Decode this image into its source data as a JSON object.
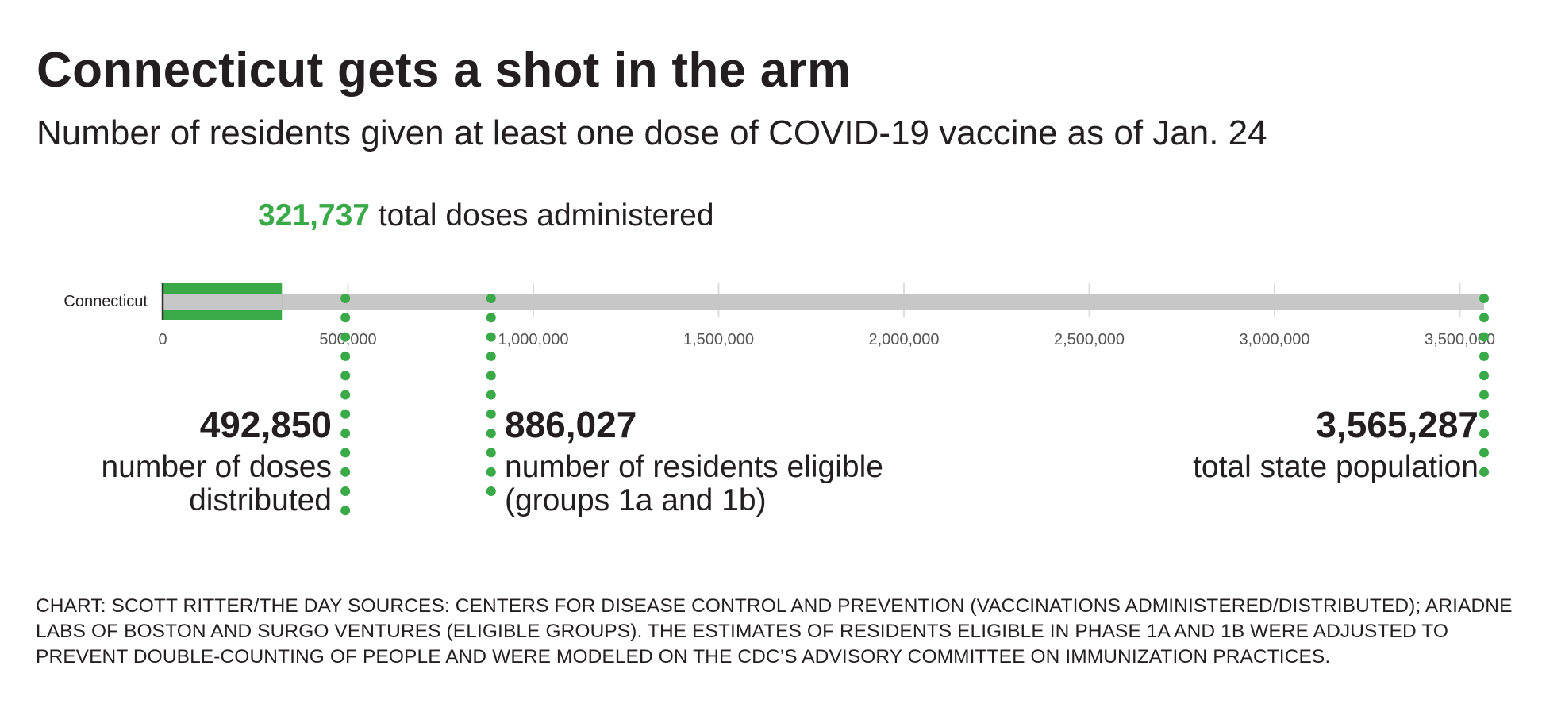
{
  "title": "Connecticut gets a shot in the arm",
  "subtitle": "Number of residents given at least one dose of COVID-19 vaccine as of Jan. 24",
  "headline": {
    "value": "321,737",
    "label": "total doses administered"
  },
  "colors": {
    "accent": "#3aaa49",
    "track": "#c7c7c7",
    "text": "#231f20",
    "tick": "#555555"
  },
  "chart_data": {
    "type": "bar",
    "orientation": "horizontal",
    "categories": [
      "Connecticut"
    ],
    "values": [
      321737
    ],
    "xlim": [
      0,
      3565287
    ],
    "ticks": [
      {
        "value": 0,
        "label": "0"
      },
      {
        "value": 500000,
        "label": "500,000"
      },
      {
        "value": 1000000,
        "label": "1,000,000"
      },
      {
        "value": 1500000,
        "label": "1,500,000"
      },
      {
        "value": 2000000,
        "label": "2,000,000"
      },
      {
        "value": 2500000,
        "label": "2,500,000"
      },
      {
        "value": 3000000,
        "label": "3,000,000"
      },
      {
        "value": 3500000,
        "label": "3,500,000"
      }
    ],
    "grid": true,
    "markers": [
      {
        "value": 492850,
        "label": "492,850",
        "description": "number of doses distributed"
      },
      {
        "value": 886027,
        "label": "886,027",
        "description": "number of residents eligible (groups 1a and 1b)"
      },
      {
        "value": 3565287,
        "label": "3,565,287",
        "description": "total state population"
      }
    ]
  },
  "callouts": {
    "distributed": {
      "value": "492,850",
      "line1": "number of doses",
      "line2": "distributed"
    },
    "eligible": {
      "value": "886,027",
      "line1": "number of residents eligible",
      "line2": "(groups 1a and 1b)"
    },
    "population": {
      "value": "3,565,287",
      "line1": "total state population"
    }
  },
  "credit": "CHART: SCOTT RITTER/THE DAY  SOURCES: CENTERS FOR DISEASE CONTROL AND PREVENTION (VACCINATIONS ADMINISTERED/DISTRIBUTED); ARIADNE LABS OF BOSTON AND SURGO VENTURES (ELIGIBLE GROUPS). THE ESTIMATES OF RESIDENTS ELIGIBLE IN PHASE 1A AND 1B WERE ADJUSTED TO  PREVENT DOUBLE-COUNTING OF PEOPLE AND WERE MODELED ON THE CDC’S ADVISORY COMMITTEE ON IMMUNIZATION PRACTICES."
}
